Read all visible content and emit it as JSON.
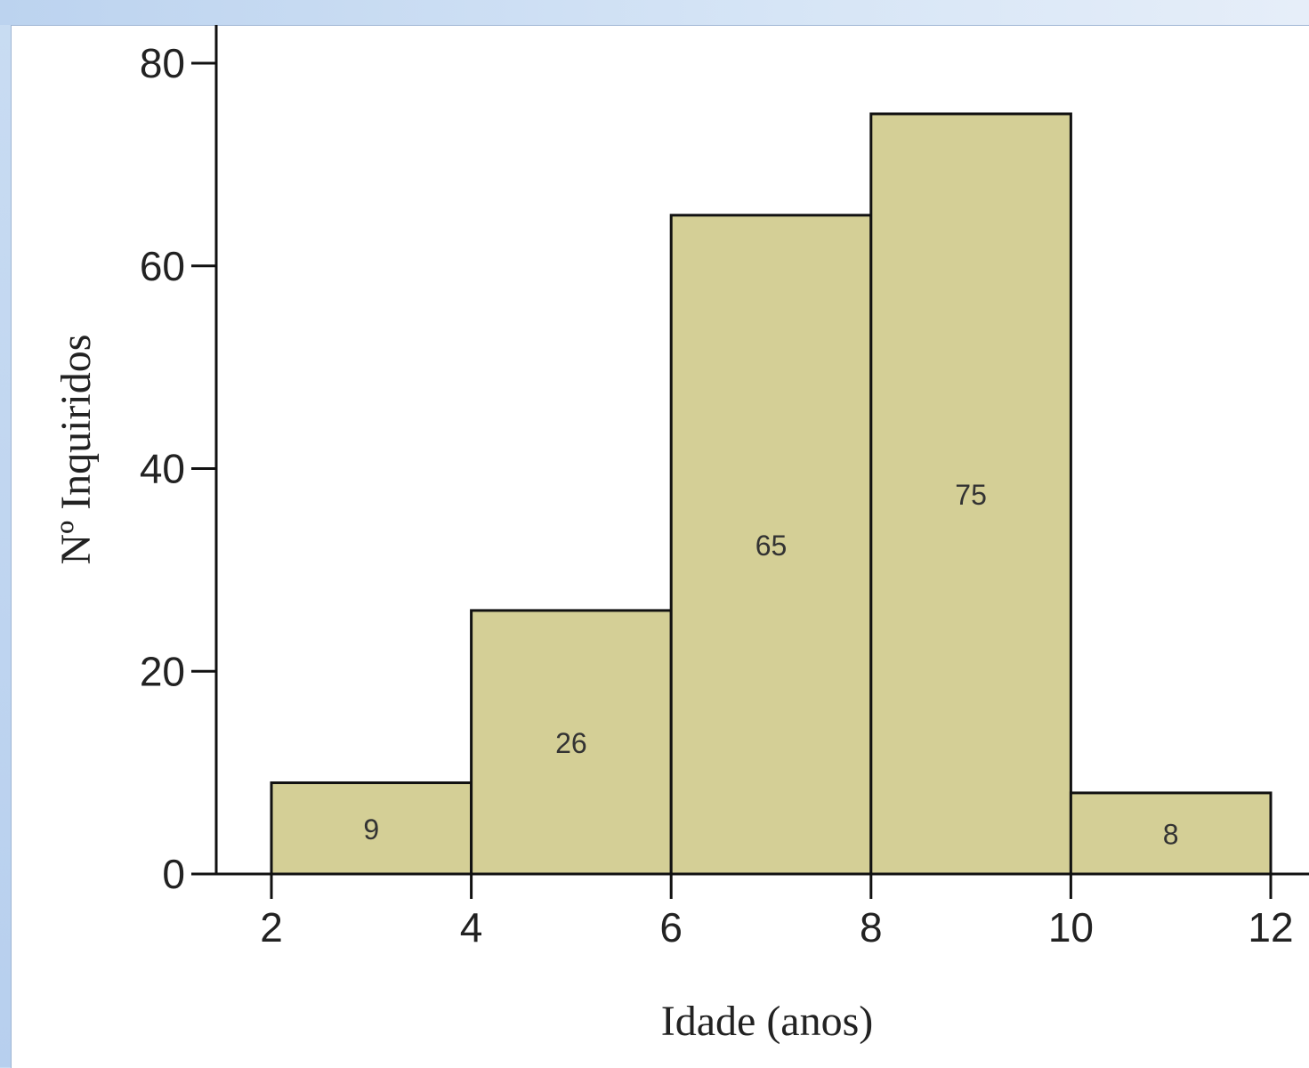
{
  "chart_data": {
    "type": "bar",
    "subtype": "histogram",
    "xlabel": "Idade (anos)",
    "ylabel": "Nº Inquiridos",
    "xlim": [
      2,
      12
    ],
    "ylim": [
      0,
      80
    ],
    "x_ticks": [
      "2",
      "4",
      "6",
      "8",
      "10",
      "12"
    ],
    "y_ticks": [
      "0",
      "20",
      "40",
      "60",
      "80"
    ],
    "bins": [
      {
        "start": 2,
        "end": 4,
        "value": 9,
        "label": "9"
      },
      {
        "start": 4,
        "end": 6,
        "value": 26,
        "label": "26"
      },
      {
        "start": 6,
        "end": 8,
        "value": 65,
        "label": "65"
      },
      {
        "start": 8,
        "end": 10,
        "value": 75,
        "label": "75"
      },
      {
        "start": 10,
        "end": 12,
        "value": 8,
        "label": "8"
      }
    ],
    "bar_color": "#d4cf96",
    "edge_color": "#111111",
    "grid": false,
    "legend": "none"
  }
}
